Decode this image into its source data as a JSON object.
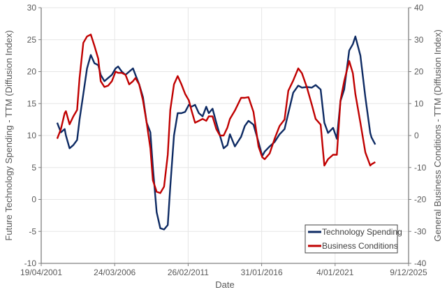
{
  "chart_data": {
    "type": "line",
    "xlabel": "Date",
    "ylabel": "Future Technology Spending - TTM (Diffusion Index)",
    "y2label": "General Business Conditions - TTM (Diffusion Index)",
    "x_ticks": [
      "19/04/2001",
      "24/03/2006",
      "26/02/2011",
      "31/01/2016",
      "4/01/2021",
      "9/12/2025"
    ],
    "x_tick_dates": [
      "2001-04-19",
      "2006-03-24",
      "2011-02-26",
      "2016-01-31",
      "2021-01-04",
      "2025-12-09"
    ],
    "ylim": [
      -10,
      30
    ],
    "y_ticks": [
      -10,
      -5,
      0,
      5,
      10,
      15,
      20,
      25,
      30
    ],
    "y2lim": [
      -40,
      40
    ],
    "y2_ticks": [
      -40,
      -30,
      -20,
      -10,
      0,
      10,
      20,
      30,
      40
    ],
    "grid": true,
    "legend_placement": "bottom-right",
    "dates": [
      "2002-05",
      "2002-08",
      "2002-11",
      "2002-12",
      "2003-03",
      "2003-06",
      "2003-09",
      "2003-11",
      "2004-02",
      "2004-05",
      "2004-08",
      "2004-11",
      "2005-02",
      "2005-04",
      "2005-07",
      "2005-10",
      "2006-01",
      "2006-04",
      "2006-06",
      "2006-09",
      "2006-12",
      "2007-03",
      "2007-06",
      "2007-08",
      "2007-11",
      "2008-02",
      "2008-05",
      "2008-08",
      "2008-10",
      "2009-01",
      "2009-04",
      "2009-07",
      "2009-10",
      "2009-12",
      "2010-03",
      "2010-06",
      "2010-09",
      "2010-12",
      "2011-03",
      "2011-05",
      "2011-08",
      "2011-11",
      "2012-02",
      "2012-05",
      "2012-07",
      "2012-10",
      "2013-01",
      "2013-04",
      "2013-07",
      "2013-10",
      "2013-12",
      "2014-04",
      "2014-09",
      "2014-12",
      "2015-03",
      "2015-07",
      "2015-11",
      "2016-02",
      "2016-04",
      "2016-08",
      "2016-12",
      "2017-04",
      "2017-08",
      "2017-11",
      "2018-03",
      "2018-07",
      "2018-10",
      "2019-02",
      "2019-06",
      "2019-09",
      "2020-01",
      "2020-04",
      "2020-07",
      "2020-11",
      "2021-02",
      "2021-05",
      "2021-08",
      "2021-12",
      "2022-03",
      "2022-05",
      "2022-09",
      "2023-01",
      "2023-05",
      "2023-06",
      "2023-09"
    ],
    "series": [
      {
        "name": "Technology Spending",
        "axis": "left",
        "color": "#0d2a63",
        "values": [
          12,
          10.5,
          11,
          10,
          8,
          8.5,
          9.3,
          12.5,
          16.5,
          20.5,
          22.6,
          21.3,
          21,
          19.5,
          18.5,
          19,
          19.5,
          20.5,
          20.8,
          20,
          19.5,
          20,
          20.5,
          19.5,
          18,
          16,
          12,
          10.5,
          5,
          -2,
          -4.5,
          -4.7,
          -4,
          2,
          10,
          13.5,
          13.5,
          13.7,
          14.8,
          14.5,
          14.8,
          13.5,
          13,
          14.5,
          13.5,
          14.2,
          12,
          10,
          8,
          8.5,
          10.2,
          8.3,
          9.8,
          11.5,
          12.3,
          11.7,
          9,
          6.8,
          7.5,
          8.3,
          9,
          10.2,
          11,
          13.5,
          16.7,
          17.8,
          17.5,
          17.6,
          17.5,
          17.9,
          17.2,
          12,
          10.4,
          11.2,
          9.5,
          15.4,
          17.2,
          23.3,
          24.3,
          25.5,
          22.5,
          16,
          10.4,
          9.7,
          8.6
        ]
      },
      {
        "name": "Business Conditions",
        "axis": "right",
        "color": "#c00000",
        "values": [
          -1,
          2,
          7,
          7.6,
          3.5,
          6,
          8,
          18,
          29,
          31,
          31.6,
          28,
          24,
          17,
          15.2,
          15.6,
          17,
          20,
          19.6,
          19.6,
          19,
          16,
          17,
          18,
          16,
          11,
          4,
          -4,
          -14,
          -17.6,
          -18,
          -16,
          -6,
          8,
          16,
          18.6,
          16,
          13,
          11,
          8,
          4,
          4.6,
          5.2,
          4.6,
          6,
          6,
          2,
          0,
          0,
          2.5,
          5.2,
          7.8,
          11.8,
          11.8,
          12,
          7.4,
          -3.4,
          -6.8,
          -7.4,
          -5.6,
          -1,
          3,
          5,
          14,
          17.2,
          21,
          19.5,
          15,
          9.6,
          5.2,
          3.4,
          -9.4,
          -7.4,
          -6,
          -6,
          11,
          17,
          23.3,
          19.5,
          13,
          4,
          -5.3,
          -9.4,
          -9,
          -8.3
        ]
      }
    ]
  }
}
